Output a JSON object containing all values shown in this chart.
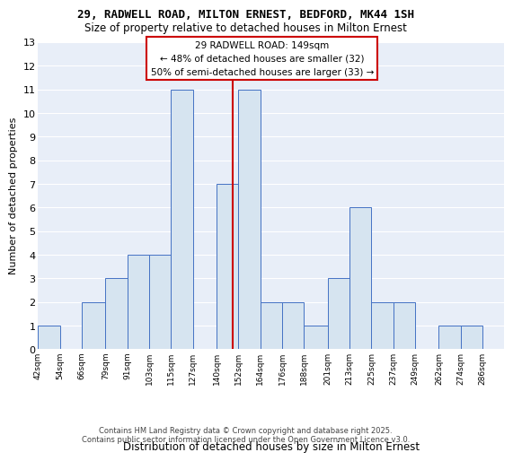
{
  "title": "29, RADWELL ROAD, MILTON ERNEST, BEDFORD, MK44 1SH",
  "subtitle": "Size of property relative to detached houses in Milton Ernest",
  "xlabel": "Distribution of detached houses by size in Milton Ernest",
  "ylabel": "Number of detached properties",
  "footer_line1": "Contains HM Land Registry data © Crown copyright and database right 2025.",
  "footer_line2": "Contains public sector information licensed under the Open Government Licence v3.0.",
  "bin_labels": [
    "42sqm",
    "54sqm",
    "66sqm",
    "79sqm",
    "91sqm",
    "103sqm",
    "115sqm",
    "127sqm",
    "140sqm",
    "152sqm",
    "164sqm",
    "176sqm",
    "188sqm",
    "201sqm",
    "213sqm",
    "225sqm",
    "237sqm",
    "249sqm",
    "262sqm",
    "274sqm",
    "286sqm"
  ],
  "bar_heights": [
    1,
    0,
    2,
    3,
    4,
    4,
    11,
    0,
    7,
    11,
    2,
    2,
    1,
    3,
    6,
    2,
    2,
    0,
    1,
    1,
    0
  ],
  "bar_color": "#d6e4f0",
  "bar_edge_color": "#4472c4",
  "vline_value": 149,
  "vline_color": "#cc0000",
  "annotation_text": "29 RADWELL ROAD: 149sqm\n← 48% of detached houses are smaller (32)\n50% of semi-detached houses are larger (33) →",
  "annotation_border_color": "#cc0000",
  "annotation_bg_color": "#ffffff",
  "ylim": [
    0,
    13
  ],
  "yticks": [
    0,
    1,
    2,
    3,
    4,
    5,
    6,
    7,
    8,
    9,
    10,
    11,
    12,
    13
  ],
  "plot_bg_color": "#e8eef8",
  "grid_color": "#ffffff",
  "bin_edges": [
    42,
    54,
    66,
    79,
    91,
    103,
    115,
    127,
    140,
    152,
    164,
    176,
    188,
    201,
    213,
    225,
    237,
    249,
    262,
    274,
    286,
    298
  ],
  "num_bins": 21
}
